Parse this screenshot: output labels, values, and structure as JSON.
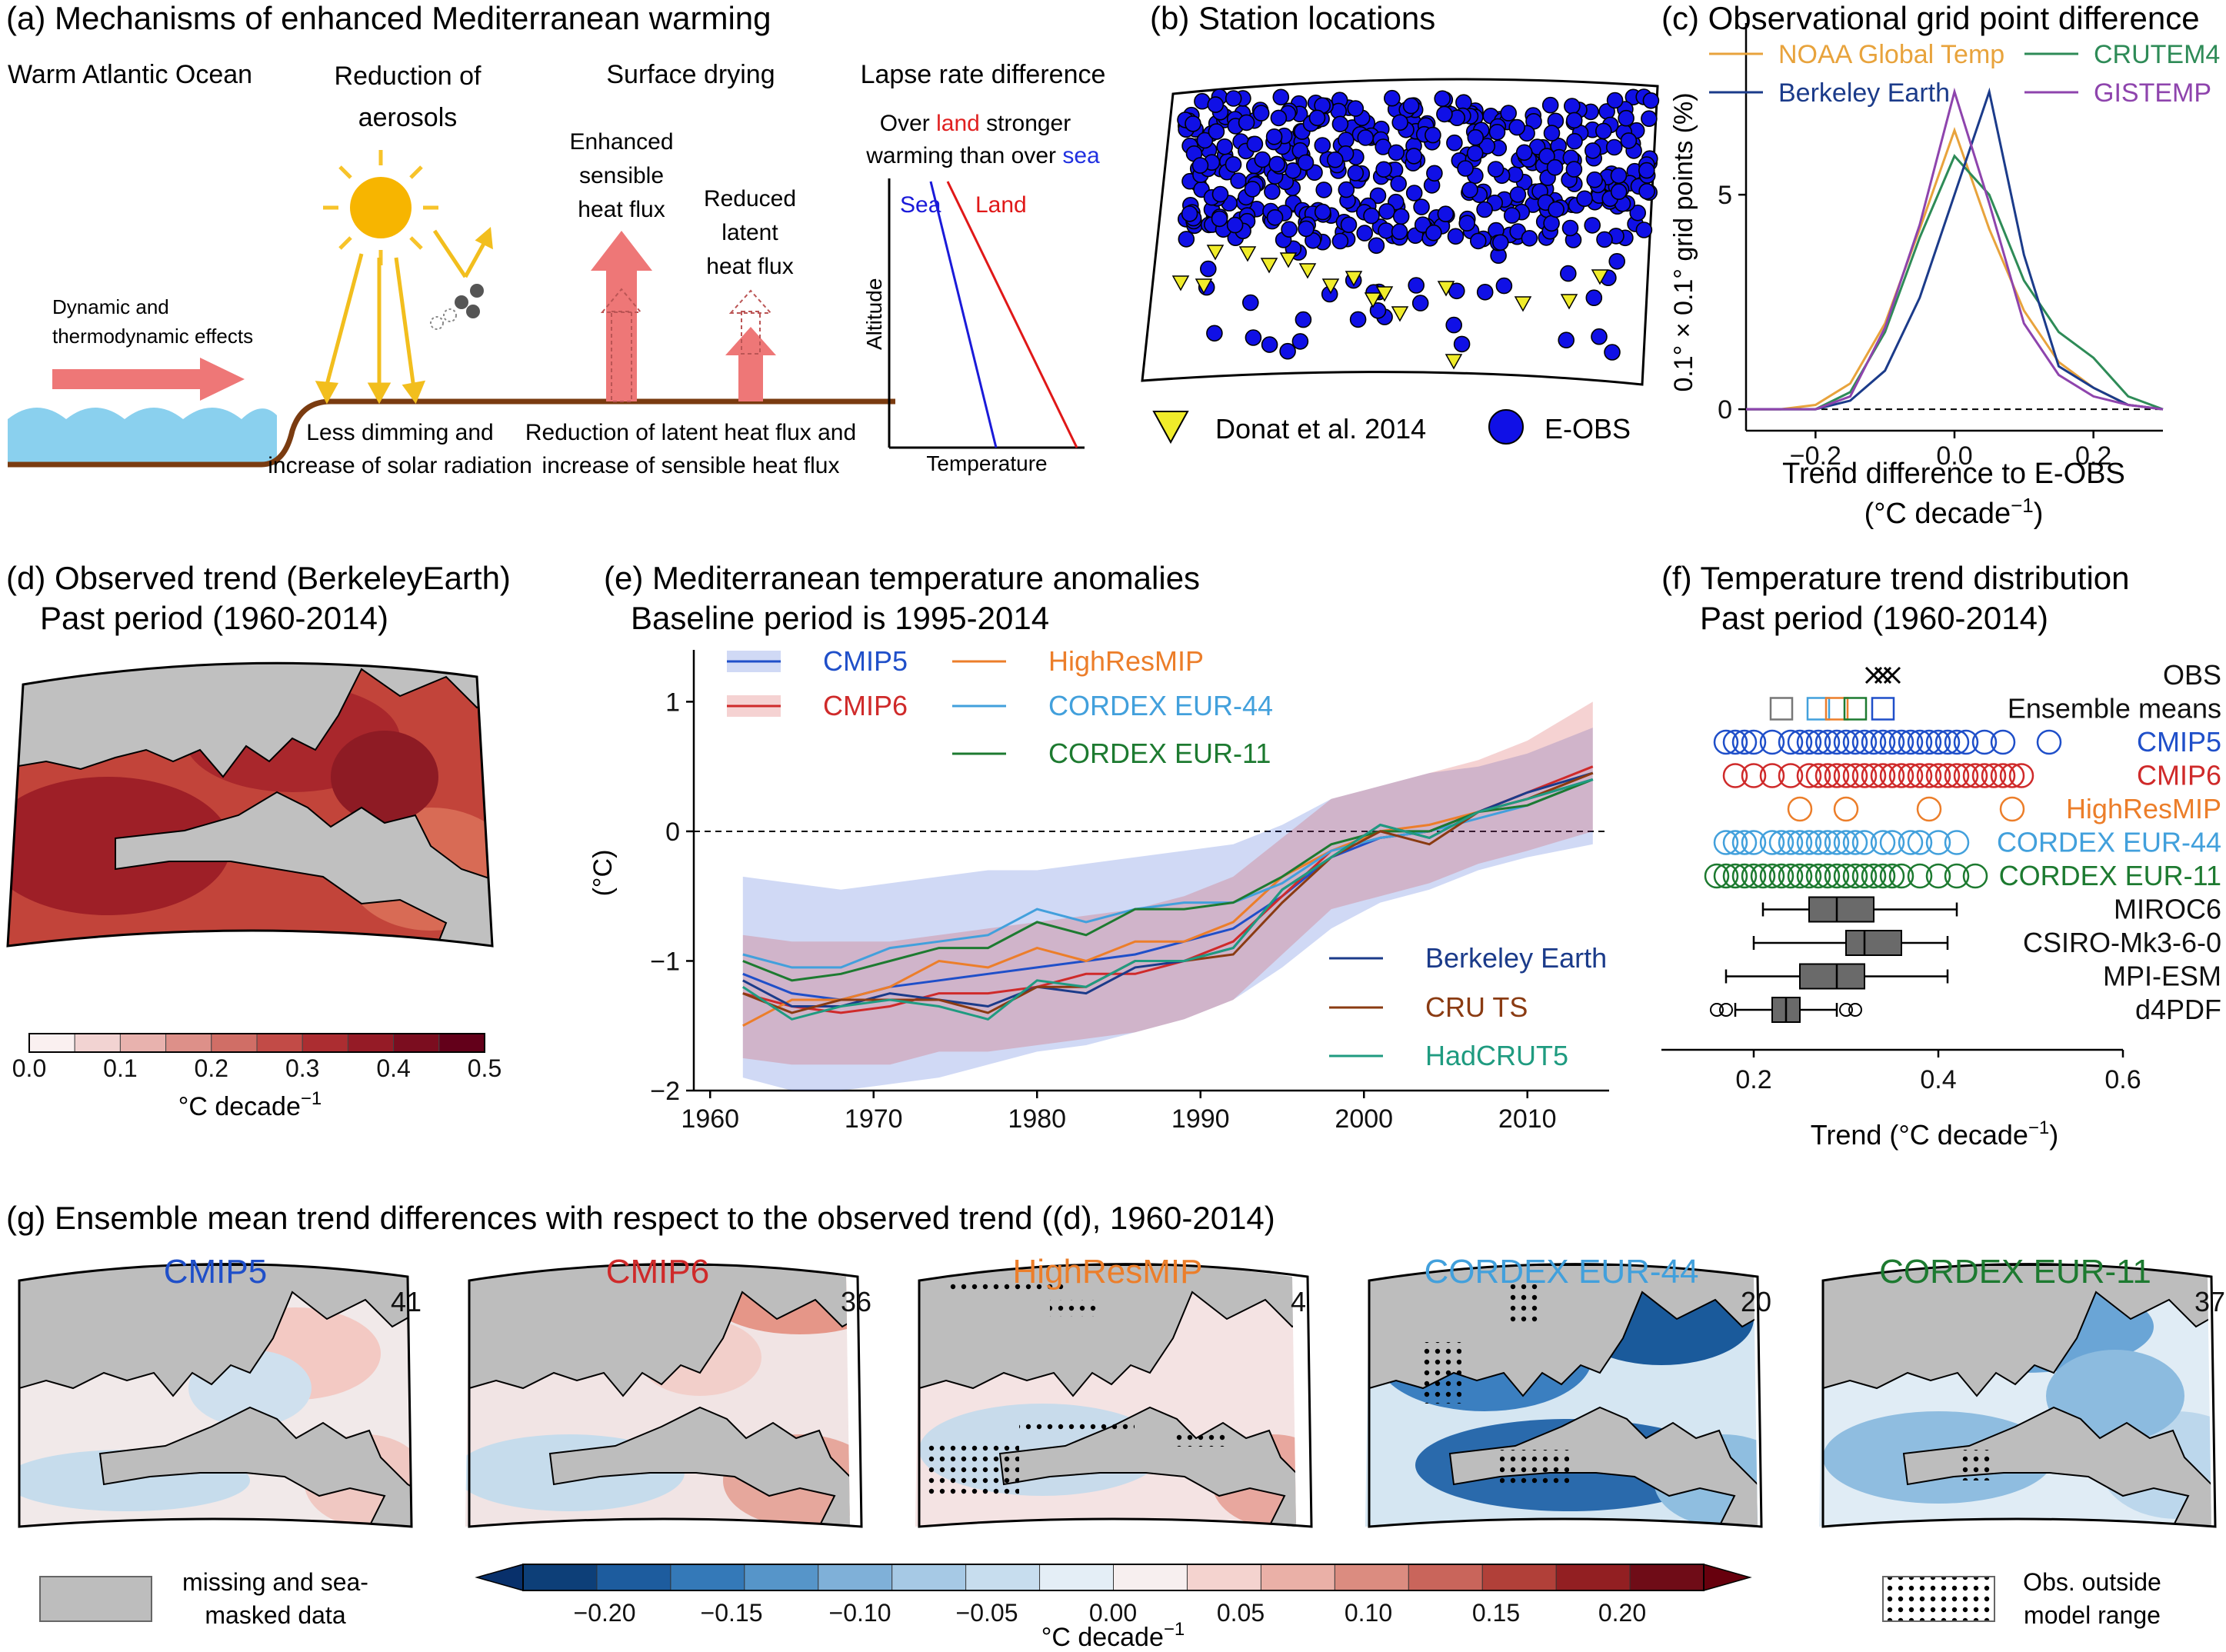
{
  "colors": {
    "cmip5": "#1f4fc9",
    "cmip6": "#cf2a2a",
    "highres": "#ec7e2a",
    "eur44": "#42a0dc",
    "eur11": "#1d7a30",
    "berkeley": "#1b3b8a",
    "cru": "#8a3b12",
    "hadcrut": "#1f9b80",
    "noaa": "#e8a33c",
    "crutem": "#2e8b57",
    "gistemp": "#8e44ad",
    "land": "#bdbdbd",
    "eobs": "#1010e6",
    "donat": "#f0ec2a"
  },
  "panel_a": {
    "title": "(a) Mechanisms of enhanced Mediterranean warming",
    "warm_atlantic": "Warm Atlantic Ocean",
    "dynamic": [
      "Dynamic and",
      "thermodynamic effects"
    ],
    "aerosols": [
      "Reduction of",
      "aerosols"
    ],
    "dimming": [
      "Less dimming and",
      "increase of solar radiation"
    ],
    "drying": "Surface drying",
    "sensible": [
      "Enhanced",
      "sensible",
      "heat flux"
    ],
    "latent": [
      "Reduced",
      "latent",
      "heat flux"
    ],
    "flux_text": [
      "Reduction of latent heat flux and",
      "increase of sensible heat flux"
    ],
    "lapse": "Lapse rate difference",
    "over_pre": "Over ",
    "over_land": "land",
    "over_mid": " stronger",
    "warm_pre": "warming than over ",
    "warm_sea": "sea",
    "sea": "Sea",
    "land": "Land",
    "altitude": "Altitude",
    "temperature": "Temperature"
  },
  "panel_b": {
    "title": "(b) Station locations",
    "legend_donat": "Donat et al. 2014",
    "legend_eobs": "E-OBS"
  },
  "panel_c": {
    "title": "(c) Observational grid point difference",
    "ylabel": "0.1° × 0.1° grid points (%)",
    "xlabel": "Trend difference to E-OBS",
    "xunit_pre": "(°C decade",
    "xunit_sup": "−1",
    "xunit_post": ")",
    "legend": [
      "NOAA Global Temp",
      "CRUTEM4",
      "Berkeley Earth",
      "GISTEMP"
    ]
  },
  "panel_d": {
    "title": [
      "(d) Observed trend (BerkeleyEarth)",
      "Past period (1960-2014)"
    ],
    "cbar_ticks": [
      "0.0",
      "0.1",
      "0.2",
      "0.3",
      "0.4",
      "0.5"
    ],
    "cbar_label": "°C decade",
    "cbar_sup": "−1"
  },
  "panel_e": {
    "title": [
      "(e) Mediterranean temperature anomalies",
      "Baseline period is 1995-2014"
    ],
    "ylabel": "(°C)"
  },
  "panel_f": {
    "title": [
      "(f) Temperature trend distribution",
      "Past period (1960-2014)"
    ],
    "xlabel": "Trend (°C decade",
    "xsup": "−1",
    "xpost": ")",
    "rows": [
      "OBS",
      "Ensemble means",
      "CMIP5",
      "CMIP6",
      "HighResMIP",
      "CORDEX EUR-44",
      "CORDEX EUR-11",
      "MIROC6",
      "CSIRO-Mk3-6-0",
      "MPI-ESM",
      "d4PDF"
    ]
  },
  "panel_g": {
    "title": "(g) Ensemble mean trend differences with respect to the observed trend ((d), 1960-2014)",
    "maps": [
      {
        "name": "CMIP5",
        "count": "41"
      },
      {
        "name": "CMIP6",
        "count": "36"
      },
      {
        "name": "HighResMIP",
        "count": "4"
      },
      {
        "name": "CORDEX EUR-44",
        "count": "20"
      },
      {
        "name": "CORDEX EUR-11",
        "count": "37"
      }
    ],
    "missing": [
      "missing and sea-",
      "masked data"
    ],
    "obs_outside": [
      "Obs. outside",
      "model range"
    ],
    "cbar_ticks": [
      "−0.20",
      "−0.15",
      "−0.10",
      "−0.05",
      "0.00",
      "0.05",
      "0.10",
      "0.15",
      "0.20"
    ],
    "cbar_label": "°C decade",
    "cbar_sup": "−1"
  },
  "chart_data": [
    {
      "panel": "c",
      "type": "line",
      "title": "(c) Observational grid point difference",
      "xlabel": "Trend difference to E-OBS (°C decade−1)",
      "ylabel": "0.1° × 0.1° grid points (%)",
      "xlim": [
        -0.3,
        0.3
      ],
      "ylim": [
        -0.5,
        9
      ],
      "xticks": [
        -0.2,
        0.0,
        0.2
      ],
      "yticks": [
        0,
        5
      ],
      "x": [
        -0.3,
        -0.25,
        -0.2,
        -0.15,
        -0.1,
        -0.05,
        0.0,
        0.05,
        0.1,
        0.15,
        0.2,
        0.25,
        0.3
      ],
      "series": [
        {
          "name": "NOAA Global Temp",
          "values": [
            0,
            0,
            0.1,
            0.6,
            2.0,
            4.2,
            6.5,
            4.2,
            2.3,
            1.1,
            0.5,
            0.1,
            0
          ]
        },
        {
          "name": "CRUTEM4",
          "values": [
            0,
            0,
            0,
            0.4,
            1.8,
            4.0,
            5.9,
            5.0,
            3.0,
            1.8,
            1.2,
            0.3,
            0
          ]
        },
        {
          "name": "Berkeley Earth",
          "values": [
            0,
            0,
            0,
            0.2,
            0.9,
            2.6,
            5.0,
            7.4,
            3.6,
            1.0,
            0.5,
            0.1,
            0
          ]
        },
        {
          "name": "GISTEMP",
          "values": [
            0,
            0,
            0,
            0.3,
            1.9,
            4.3,
            7.4,
            4.8,
            2.0,
            0.8,
            0.3,
            0.1,
            0
          ]
        }
      ]
    },
    {
      "panel": "e",
      "type": "line",
      "title": "(e) Mediterranean temperature anomalies",
      "ylabel": "(°C)",
      "xlim": [
        1959,
        2015
      ],
      "ylim": [
        -2,
        1.4
      ],
      "xticks": [
        1960,
        1970,
        1980,
        1990,
        2000,
        2010
      ],
      "yticks": [
        -2,
        -1,
        0,
        1
      ],
      "x": [
        1962,
        1965,
        1968,
        1971,
        1974,
        1977,
        1980,
        1983,
        1986,
        1989,
        1992,
        1995,
        1998,
        2001,
        2004,
        2007,
        2010,
        2014
      ],
      "series": [
        {
          "name": "CMIP5",
          "values": [
            -1.1,
            -1.25,
            -1.3,
            -1.2,
            -1.15,
            -1.1,
            -1.05,
            -1.0,
            -0.95,
            -0.85,
            -0.75,
            -0.5,
            -0.2,
            -0.05,
            0.0,
            0.15,
            0.25,
            0.4
          ],
          "band_lo": [
            -1.9,
            -2.0,
            -2.0,
            -1.95,
            -1.9,
            -1.8,
            -1.7,
            -1.65,
            -1.55,
            -1.45,
            -1.3,
            -1.05,
            -0.75,
            -0.55,
            -0.45,
            -0.3,
            -0.2,
            -0.1
          ],
          "band_hi": [
            -0.35,
            -0.4,
            -0.45,
            -0.4,
            -0.35,
            -0.3,
            -0.3,
            -0.25,
            -0.2,
            -0.15,
            -0.1,
            0.05,
            0.25,
            0.35,
            0.45,
            0.5,
            0.6,
            0.8
          ]
        },
        {
          "name": "CMIP6",
          "values": [
            -1.25,
            -1.35,
            -1.4,
            -1.35,
            -1.25,
            -1.25,
            -1.2,
            -1.1,
            -1.1,
            -1.0,
            -0.85,
            -0.5,
            -0.15,
            -0.05,
            0.0,
            0.15,
            0.3,
            0.5
          ],
          "band_lo": [
            -1.75,
            -1.8,
            -1.8,
            -1.8,
            -1.7,
            -1.7,
            -1.65,
            -1.6,
            -1.55,
            -1.45,
            -1.3,
            -0.95,
            -0.6,
            -0.5,
            -0.4,
            -0.25,
            -0.15,
            0.0
          ],
          "band_hi": [
            -0.8,
            -0.85,
            -0.85,
            -0.85,
            -0.8,
            -0.75,
            -0.7,
            -0.65,
            -0.6,
            -0.5,
            -0.35,
            -0.05,
            0.25,
            0.35,
            0.45,
            0.55,
            0.7,
            1.0
          ]
        },
        {
          "name": "HighResMIP",
          "values": [
            -1.5,
            -1.3,
            -1.3,
            -1.2,
            -1.0,
            -1.05,
            -0.9,
            -1.0,
            -0.85,
            -0.85,
            -0.7,
            -0.35,
            -0.15,
            0.0,
            0.05,
            0.15,
            0.25,
            0.45
          ]
        },
        {
          "name": "CORDEX EUR-44",
          "values": [
            -0.95,
            -1.05,
            -1.05,
            -0.9,
            -0.85,
            -0.8,
            -0.6,
            -0.7,
            -0.6,
            -0.55,
            -0.55,
            -0.4,
            -0.15,
            -0.05,
            0.0,
            0.1,
            0.2,
            0.4
          ]
        },
        {
          "name": "CORDEX EUR-11",
          "values": [
            -1.0,
            -1.15,
            -1.1,
            -1.0,
            -0.9,
            -0.9,
            -0.7,
            -0.8,
            -0.6,
            -0.6,
            -0.55,
            -0.35,
            -0.1,
            0.0,
            0.0,
            0.15,
            0.2,
            0.4
          ]
        },
        {
          "name": "Berkeley Earth",
          "values": [
            -1.15,
            -1.35,
            -1.35,
            -1.25,
            -1.3,
            -1.35,
            -1.2,
            -1.25,
            -1.05,
            -1.0,
            -0.9,
            -0.45,
            -0.2,
            0.05,
            -0.05,
            0.15,
            0.3,
            0.45
          ]
        },
        {
          "name": "CRU TS",
          "values": [
            -1.25,
            -1.4,
            -1.3,
            -1.3,
            -1.3,
            -1.4,
            -1.2,
            -1.2,
            -1.0,
            -1.0,
            -0.95,
            -0.55,
            -0.2,
            0.0,
            -0.1,
            0.15,
            0.25,
            0.45
          ]
        },
        {
          "name": "HadCRUT5",
          "values": [
            -1.2,
            -1.45,
            -1.35,
            -1.3,
            -1.35,
            -1.45,
            -1.15,
            -1.2,
            -1.0,
            -1.0,
            -0.9,
            -0.45,
            -0.2,
            0.05,
            -0.05,
            0.15,
            0.25,
            0.4
          ]
        }
      ]
    },
    {
      "panel": "f",
      "type": "scatter",
      "title": "(f) Temperature trend distribution",
      "xlabel": "Trend (°C decade−1)",
      "xlim": [
        0.1,
        0.6
      ],
      "xticks": [
        0.2,
        0.4,
        0.6
      ],
      "obs": [
        0.33,
        0.34,
        0.35
      ],
      "ensemble_means": [
        0.23,
        0.27,
        0.29,
        0.31,
        0.34
      ],
      "CMIP5": [
        0.17,
        0.18,
        0.19,
        0.2,
        0.22,
        0.24,
        0.25,
        0.26,
        0.27,
        0.28,
        0.29,
        0.3,
        0.31,
        0.32,
        0.33,
        0.34,
        0.35,
        0.36,
        0.37,
        0.38,
        0.39,
        0.4,
        0.41,
        0.42,
        0.43,
        0.45,
        0.47,
        0.52
      ],
      "CMIP6": [
        0.18,
        0.2,
        0.22,
        0.24,
        0.26,
        0.27,
        0.28,
        0.29,
        0.3,
        0.31,
        0.32,
        0.33,
        0.34,
        0.35,
        0.36,
        0.37,
        0.38,
        0.39,
        0.4,
        0.41,
        0.42,
        0.43,
        0.44,
        0.45,
        0.46,
        0.47,
        0.48,
        0.49
      ],
      "HighResMIP": [
        0.25,
        0.3,
        0.39,
        0.48
      ],
      "CORDEX EUR-44": [
        0.17,
        0.18,
        0.19,
        0.2,
        0.22,
        0.23,
        0.24,
        0.25,
        0.26,
        0.27,
        0.28,
        0.29,
        0.3,
        0.31,
        0.32,
        0.34,
        0.35,
        0.37,
        0.38,
        0.4,
        0.42
      ],
      "CORDEX EUR-11": [
        0.16,
        0.17,
        0.18,
        0.19,
        0.2,
        0.21,
        0.22,
        0.23,
        0.24,
        0.25,
        0.26,
        0.27,
        0.28,
        0.29,
        0.3,
        0.31,
        0.32,
        0.33,
        0.34,
        0.35,
        0.36,
        0.38,
        0.4,
        0.42,
        0.44
      ],
      "boxes": [
        {
          "name": "MIROC6",
          "whislo": 0.21,
          "q1": 0.26,
          "med": 0.29,
          "q3": 0.33,
          "whishi": 0.42
        },
        {
          "name": "CSIRO-Mk3-6-0",
          "whislo": 0.2,
          "q1": 0.3,
          "med": 0.32,
          "q3": 0.36,
          "whishi": 0.41
        },
        {
          "name": "MPI-ESM",
          "whislo": 0.17,
          "q1": 0.25,
          "med": 0.29,
          "q3": 0.32,
          "whishi": 0.41
        },
        {
          "name": "d4PDF",
          "whislo": 0.18,
          "q1": 0.22,
          "med": 0.235,
          "q3": 0.25,
          "whishi": 0.29,
          "fliers": [
            0.16,
            0.17,
            0.3,
            0.31
          ]
        }
      ]
    }
  ]
}
